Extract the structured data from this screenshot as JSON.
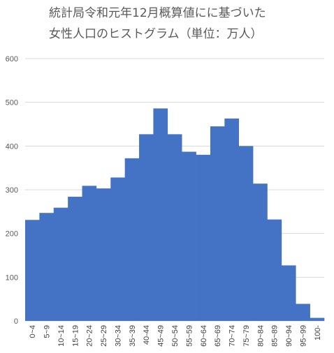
{
  "chart_data": {
    "type": "bar",
    "title_lines": [
      "統計局令和元年12月概算値にに基づいた",
      "女性人口のヒストグラム（単位：万人）"
    ],
    "xlabel": "",
    "ylabel": "",
    "ylim": [
      0,
      600
    ],
    "yticks": [
      0,
      100,
      200,
      300,
      400,
      500,
      600
    ],
    "grid": true,
    "legend": "none",
    "bar_gap": 0,
    "categories": [
      "0~4",
      "5~9",
      "10~14",
      "15~19",
      "20~24",
      "25~29",
      "30~34",
      "35~39",
      "40-44",
      "45~49",
      "50~54",
      "55~59",
      "60~64",
      "65~69",
      "70~74",
      "75~79",
      "80~84",
      "85~89",
      "90~94",
      "95~99",
      "100-"
    ],
    "values": [
      231,
      247,
      259,
      284,
      309,
      303,
      328,
      372,
      427,
      486,
      427,
      387,
      380,
      445,
      463,
      400,
      314,
      232,
      127,
      39,
      7
    ],
    "colors": {
      "bar": "#4472c4",
      "grid": "#d9d9d9",
      "text": "#595959"
    }
  }
}
